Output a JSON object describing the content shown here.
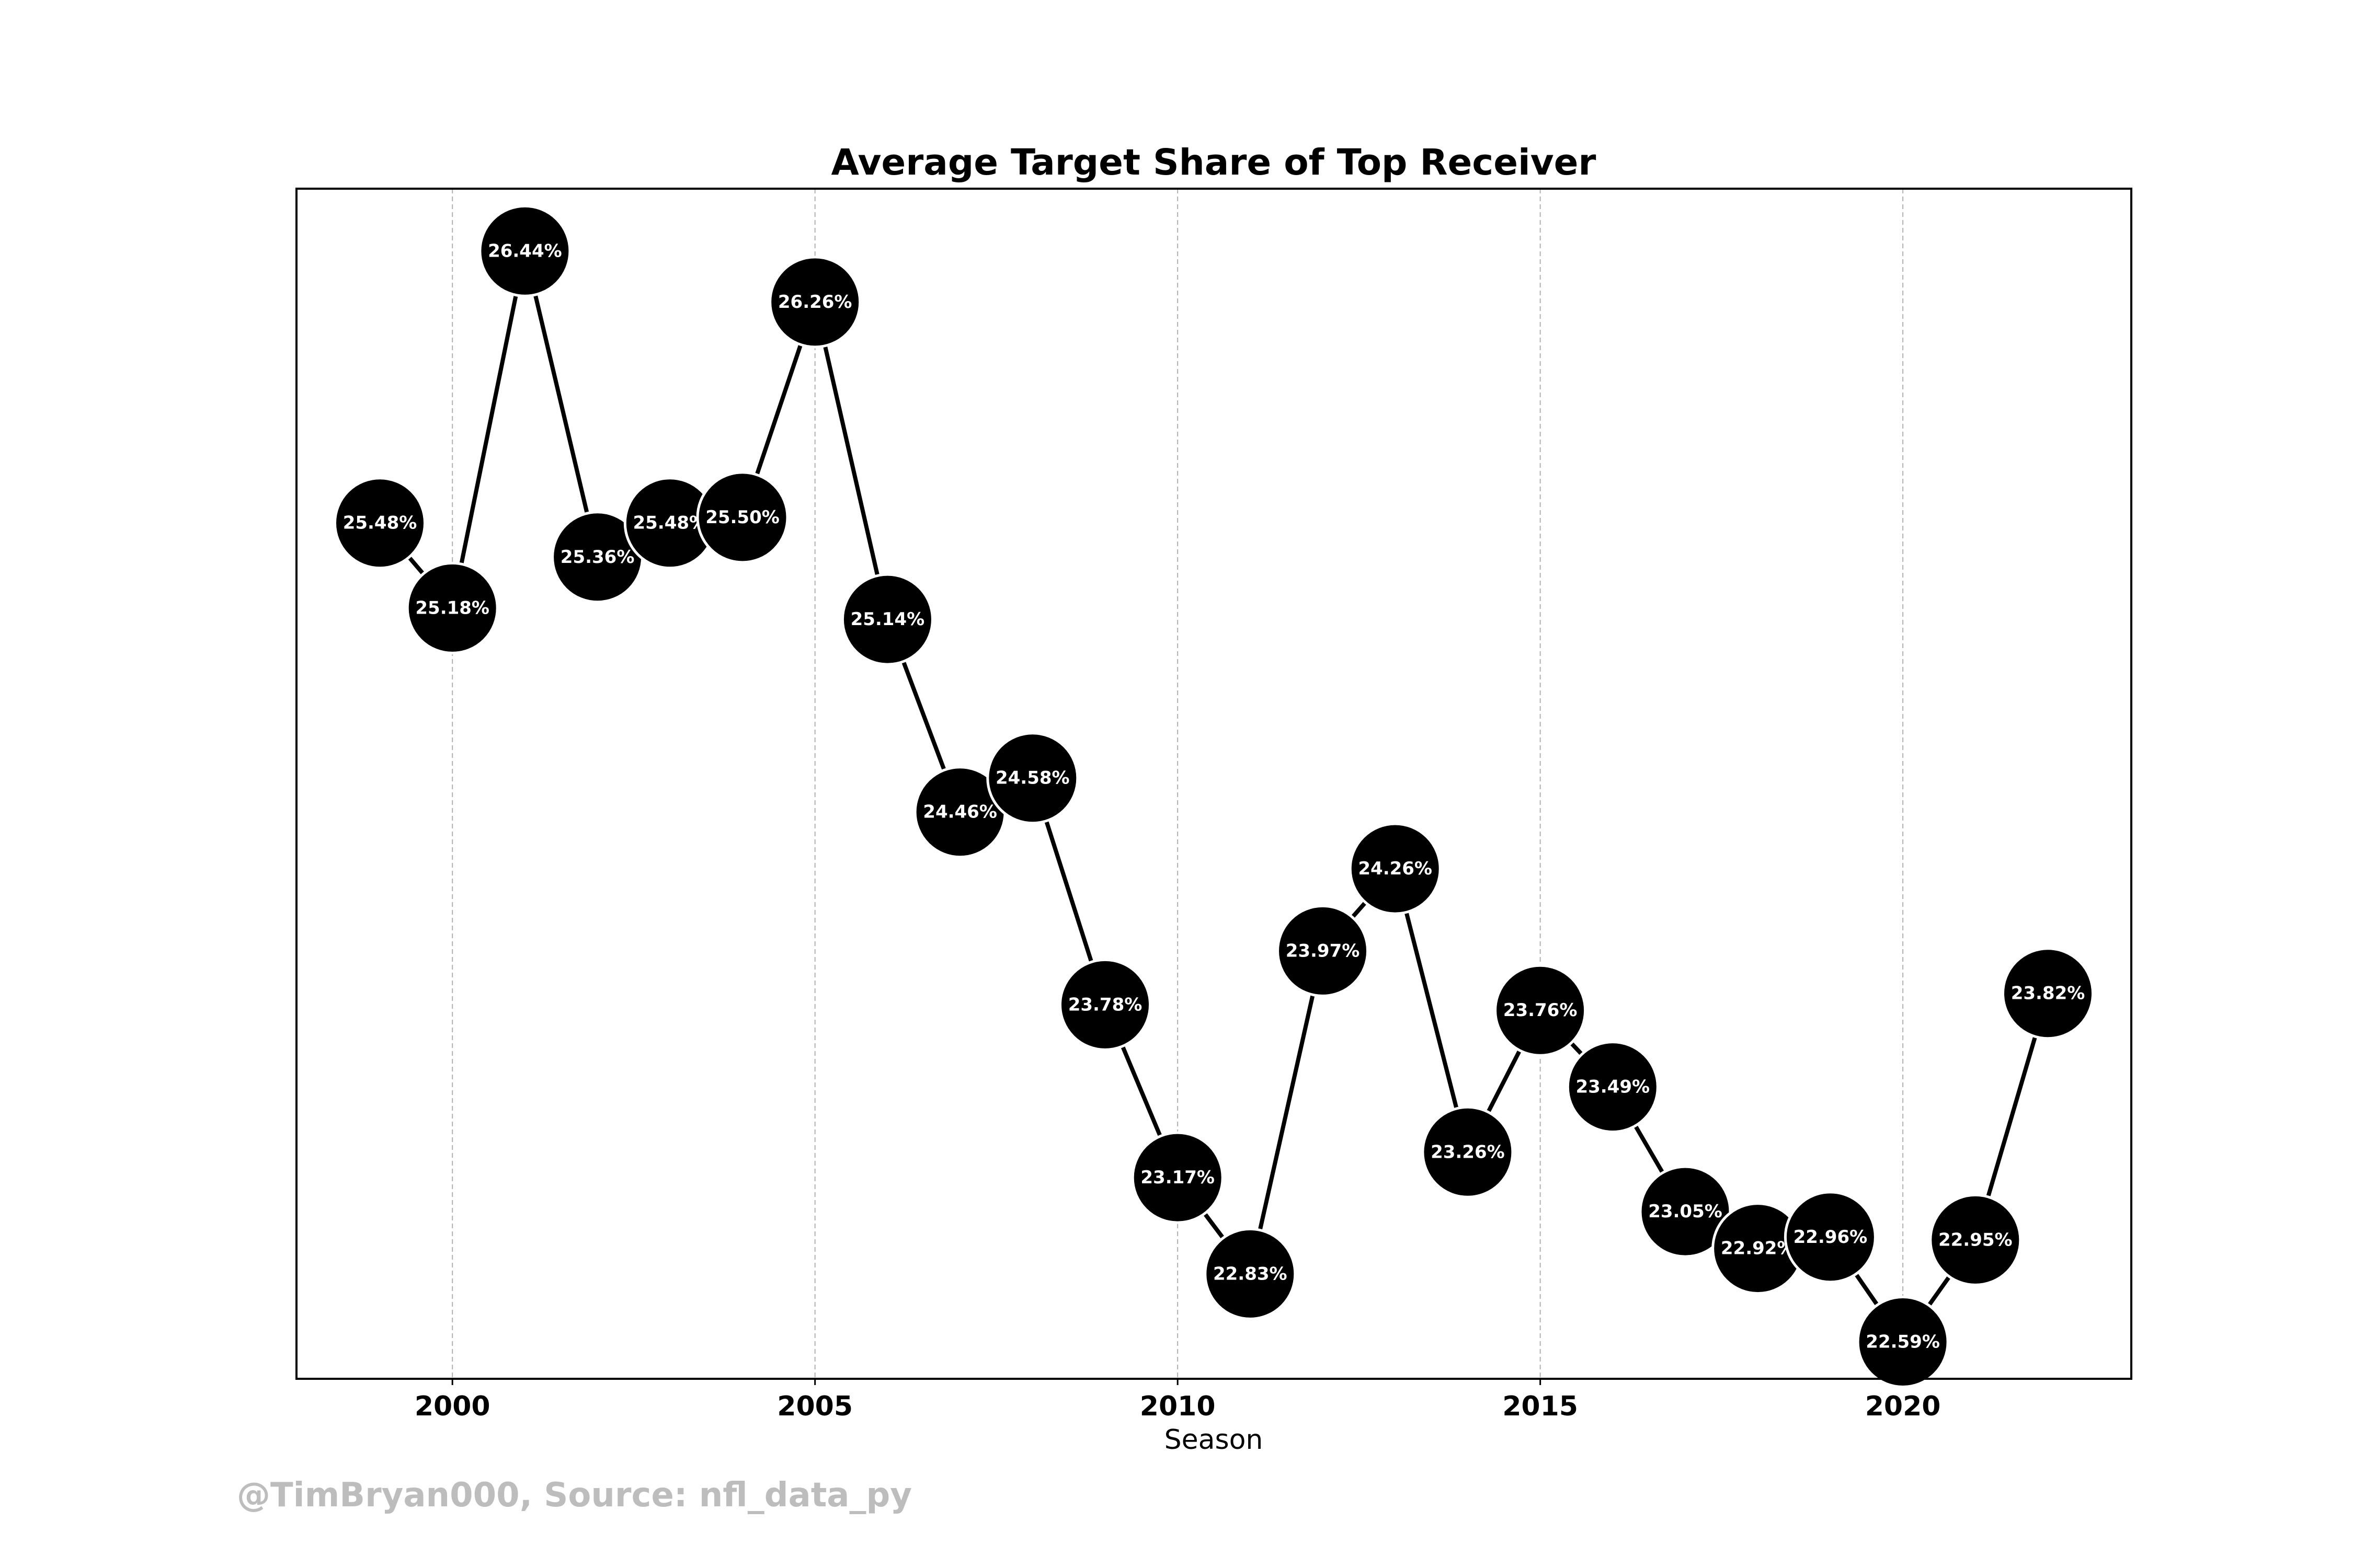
{
  "credit": "@TimBryan000, Source: nfl_data_py",
  "colors": {
    "marker": "#000000",
    "marker_edge": "#ffffff",
    "line": "#000000",
    "label_text": "#ffffff",
    "grid": "#b0b0b0",
    "credit": "#bdbdbd"
  },
  "chart_data": {
    "type": "line",
    "title": "Average Target Share of Top Receiver",
    "xlabel": "Season",
    "ylabel": "",
    "x": [
      1999,
      2000,
      2001,
      2002,
      2003,
      2004,
      2005,
      2006,
      2007,
      2008,
      2009,
      2010,
      2011,
      2012,
      2013,
      2014,
      2015,
      2016,
      2017,
      2018,
      2019,
      2020,
      2021,
      2022
    ],
    "series": [
      {
        "values": [
          25.48,
          25.18,
          26.44,
          25.36,
          25.48,
          25.5,
          26.26,
          25.14,
          24.46,
          24.58,
          23.78,
          23.17,
          22.83,
          23.97,
          24.26,
          23.26,
          23.76,
          23.49,
          23.05,
          22.92,
          22.96,
          22.59,
          22.95,
          23.82
        ],
        "labels": [
          "25.48%",
          "25.18%",
          "26.44%",
          "25.36%",
          "25.48%",
          "25.50%",
          "26.26%",
          "25.14%",
          "24.46%",
          "24.58%",
          "23.78%",
          "23.17%",
          "22.83%",
          "23.97%",
          "24.26%",
          "23.26%",
          "23.76%",
          "23.49%",
          "23.05%",
          "22.92%",
          "22.96%",
          "22.59%",
          "22.95%",
          "23.82%"
        ]
      }
    ],
    "xticks": [
      2000,
      2005,
      2010,
      2015,
      2020
    ],
    "xlim": [
      1997.85,
      2023.15
    ],
    "ylim": [
      22.46,
      26.66
    ],
    "y_ticks_visible": false,
    "grid": "x-dashed"
  }
}
